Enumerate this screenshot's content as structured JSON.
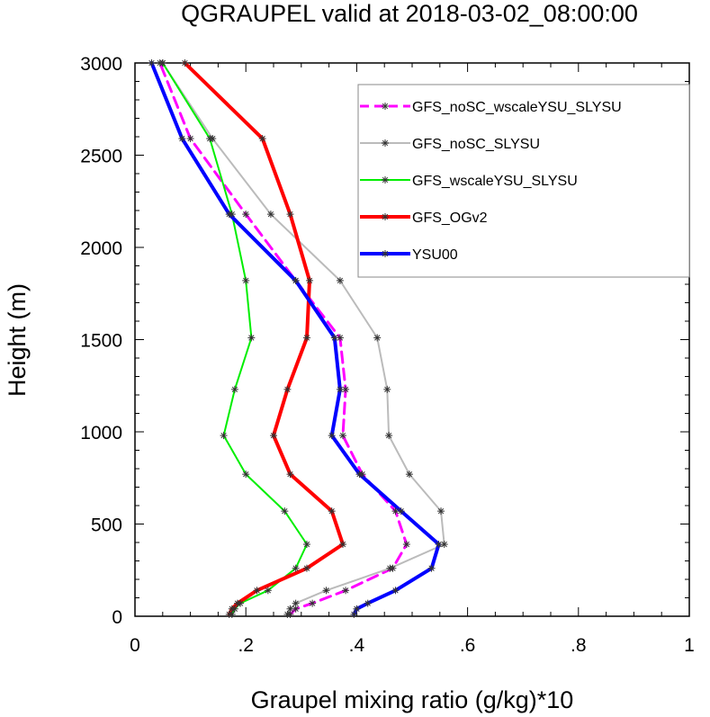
{
  "chart_data": {
    "type": "line",
    "title": "QGRAUPEL valid at 2018-03-02_08:00:00",
    "xlabel": "Graupel mixing ratio (g/kg)*10",
    "ylabel": "Height (m)",
    "xlim": [
      0,
      1
    ],
    "ylim": [
      0,
      3000
    ],
    "xticks": [
      0,
      0.2,
      0.4,
      0.6,
      0.8,
      1
    ],
    "xtick_labels": [
      "0",
      ".2",
      ".4",
      ".6",
      ".8",
      "1"
    ],
    "yticks": [
      0,
      500,
      1000,
      1500,
      2000,
      2500,
      3000
    ],
    "ytick_labels": [
      "0",
      "500",
      "1000",
      "1500",
      "2000",
      "2500",
      "3000"
    ],
    "grid": false,
    "legend_position": "top-right",
    "heights": [
      10,
      40,
      70,
      140,
      260,
      390,
      570,
      770,
      980,
      1230,
      1510,
      1820,
      2180,
      2590,
      3000
    ],
    "series": [
      {
        "name": "GFS_noSC_wscaleYSU_SLYSU",
        "color": "#ff00ff",
        "dash": true,
        "width": 3,
        "values": [
          0.28,
          0.29,
          0.32,
          0.38,
          0.465,
          0.49,
          0.47,
          0.41,
          0.375,
          0.38,
          0.37,
          0.29,
          0.2,
          0.1,
          0.045
        ]
      },
      {
        "name": "GFS_noSC_SLYSU",
        "color": "#bbbbbb",
        "dash": false,
        "width": 2,
        "values": [
          0.275,
          0.28,
          0.29,
          0.345,
          0.46,
          0.558,
          0.552,
          0.495,
          0.458,
          0.455,
          0.437,
          0.37,
          0.245,
          0.14,
          0.05
        ]
      },
      {
        "name": "GFS_wscaleYSU_SLYSU",
        "color": "#00ee00",
        "dash": false,
        "width": 2,
        "values": [
          0.175,
          0.18,
          0.19,
          0.24,
          0.29,
          0.31,
          0.27,
          0.2,
          0.16,
          0.18,
          0.21,
          0.2,
          0.175,
          0.135,
          0.05
        ]
      },
      {
        "name": "GFS_OGv2",
        "color": "#ff0000",
        "dash": false,
        "width": 4,
        "values": [
          0.17,
          0.175,
          0.185,
          0.22,
          0.31,
          0.375,
          0.355,
          0.28,
          0.25,
          0.275,
          0.31,
          0.315,
          0.28,
          0.23,
          0.09
        ]
      },
      {
        "name": "YSU00",
        "color": "#0000ff",
        "dash": false,
        "width": 4,
        "values": [
          0.395,
          0.4,
          0.42,
          0.47,
          0.535,
          0.548,
          0.48,
          0.405,
          0.355,
          0.37,
          0.36,
          0.29,
          0.17,
          0.085,
          0.03
        ]
      }
    ]
  }
}
